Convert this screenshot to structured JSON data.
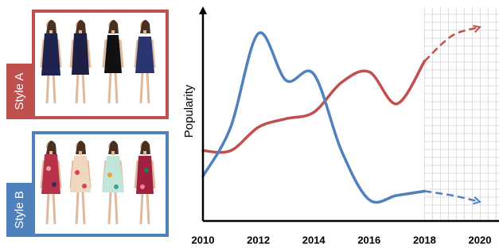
{
  "chart_data": {
    "type": "line",
    "y_label": "Popularity",
    "x": [
      2010,
      2011,
      2012,
      2013,
      2014,
      2015,
      2016,
      2017,
      2018
    ],
    "series": [
      {
        "name": "Style A",
        "color": "#c0504d",
        "values": [
          33,
          33,
          44,
          48,
          51,
          65,
          70,
          55,
          75
        ],
        "projection": {
          "x": [
            2018,
            2019,
            2020
          ],
          "values": [
            75,
            87,
            91
          ]
        }
      },
      {
        "name": "Style B",
        "color": "#4f81bd",
        "values": [
          21,
          44,
          88,
          66,
          69,
          33,
          10,
          12,
          14
        ],
        "projection": {
          "x": [
            2018,
            2019,
            2020
          ],
          "values": [
            14,
            12,
            9
          ]
        }
      }
    ],
    "xlim": [
      2010,
      2020
    ],
    "ylim": [
      0,
      100
    ],
    "xticks": [
      2010,
      2012,
      2014,
      2016,
      2018,
      2020
    ],
    "grid_region": [
      2018,
      2020
    ]
  }
}
